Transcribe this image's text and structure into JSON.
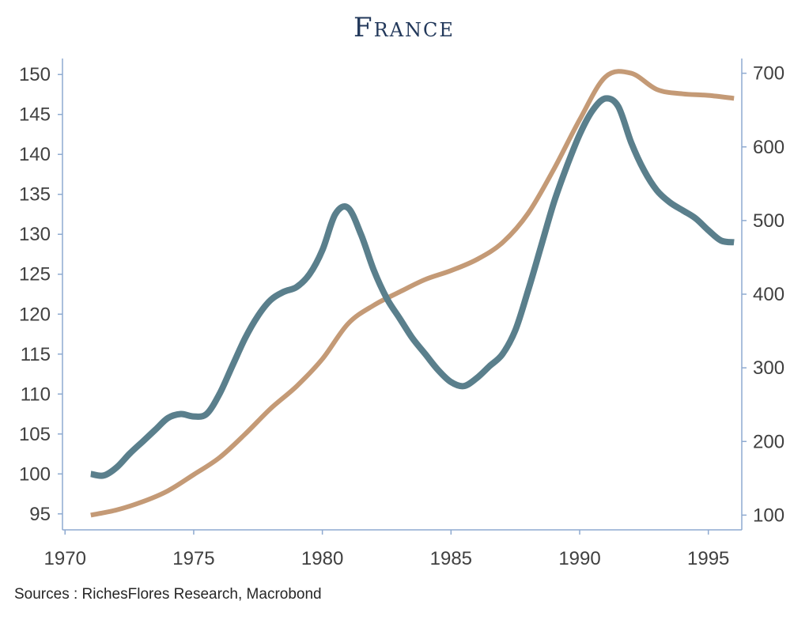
{
  "chart_data": {
    "type": "line",
    "title": "France",
    "source": "Sources : RichesFlores Research, Macrobond",
    "x_ticks": [
      "1970",
      "1975",
      "1980",
      "1985",
      "1990",
      "1995"
    ],
    "x_tick_values": [
      1970,
      1975,
      1980,
      1985,
      1990,
      1995
    ],
    "xlim": [
      1969.9,
      1996.3
    ],
    "y_left": {
      "ticks": [
        "95",
        "100",
        "105",
        "110",
        "115",
        "120",
        "125",
        "130",
        "135",
        "140",
        "145",
        "150"
      ],
      "tick_values": [
        95,
        100,
        105,
        110,
        115,
        120,
        125,
        130,
        135,
        140,
        145,
        150
      ],
      "lim": [
        93,
        152
      ]
    },
    "y_right": {
      "ticks": [
        "100",
        "200",
        "300",
        "400",
        "500",
        "600",
        "700"
      ],
      "tick_values": [
        100,
        200,
        300,
        400,
        500,
        600,
        700
      ],
      "lim": [
        80,
        720
      ]
    },
    "grid": false,
    "series": [
      {
        "axis": "left",
        "color": "#5a7f8c",
        "x": [
          1971,
          1971.5,
          1972,
          1972.5,
          1973,
          1973.5,
          1974,
          1974.5,
          1975,
          1975.5,
          1976,
          1976.5,
          1977,
          1977.5,
          1978,
          1978.5,
          1979,
          1979.5,
          1980,
          1980.5,
          1981,
          1981.5,
          1982,
          1982.5,
          1983,
          1983.5,
          1984,
          1984.5,
          1985,
          1985.5,
          1986,
          1986.5,
          1987,
          1987.5,
          1988,
          1988.5,
          1989,
          1989.5,
          1990,
          1990.5,
          1991,
          1991.5,
          1992,
          1992.5,
          1993,
          1993.5,
          1994,
          1994.5,
          1995,
          1995.5,
          1996
        ],
        "values": [
          100,
          99.8,
          100.8,
          102.5,
          104,
          105.5,
          107,
          107.5,
          107.2,
          107.5,
          110,
          113.5,
          117,
          119.8,
          121.8,
          122.8,
          123.4,
          125,
          128,
          132.5,
          133.3,
          130,
          125.5,
          122,
          119.5,
          117,
          115,
          113,
          111.5,
          111,
          112,
          113.5,
          115,
          118,
          123,
          128.5,
          134,
          138.5,
          142.5,
          145.5,
          147,
          146,
          141.5,
          138,
          135.5,
          134,
          133,
          132,
          130.5,
          129.2,
          129
        ]
      },
      {
        "axis": "right",
        "color": "#c49a76",
        "x": [
          1971,
          1972,
          1973,
          1974,
          1975,
          1976,
          1977,
          1978,
          1979,
          1980,
          1981,
          1982,
          1983,
          1984,
          1985,
          1986,
          1987,
          1988,
          1989,
          1990,
          1991,
          1992,
          1993,
          1994,
          1995,
          1996
        ],
        "values": [
          100,
          107,
          118,
          133,
          155,
          178,
          210,
          245,
          275,
          312,
          360,
          385,
          403,
          420,
          432,
          447,
          470,
          510,
          570,
          637,
          695,
          700,
          678,
          672,
          670,
          666
        ]
      }
    ]
  }
}
